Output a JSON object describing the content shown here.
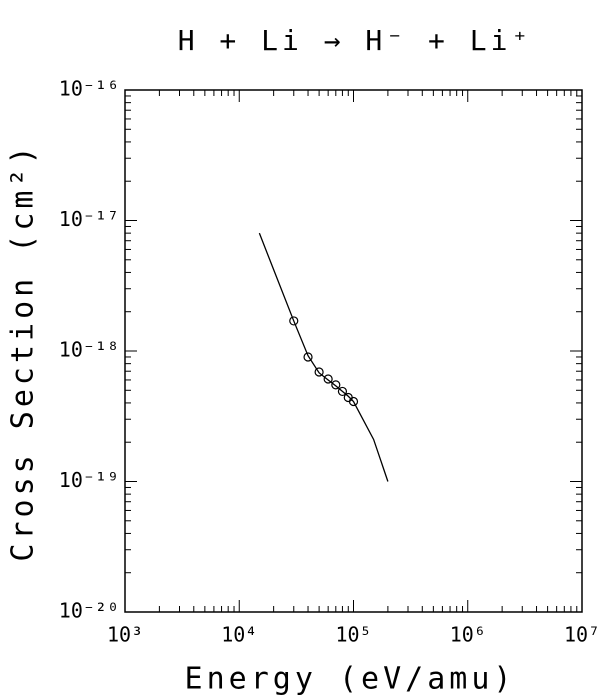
{
  "chart_data": {
    "type": "scatter",
    "title": "H + Li → H⁻ + Li⁺",
    "x_label": "Energy (eV/amu)",
    "y_label": "Cross Section (cm²)",
    "log_x": true,
    "log_y": true,
    "color": "#000000",
    "xlim": [
      1000,
      10000000
    ],
    "ylim": [
      1e-20,
      1e-16
    ],
    "xticks": [
      {
        "value": 1000,
        "label": "10³"
      },
      {
        "value": 10000,
        "label": "10⁴"
      },
      {
        "value": 100000,
        "label": "10⁵"
      },
      {
        "value": 1000000,
        "label": "10⁶"
      },
      {
        "value": 10000000,
        "label": "10⁷"
      }
    ],
    "yticks": [
      {
        "value": 1e-20,
        "label": "10⁻²⁰"
      },
      {
        "value": 1e-19,
        "label": "10⁻¹⁹"
      },
      {
        "value": 1e-18,
        "label": "10⁻¹⁸"
      },
      {
        "value": 1e-17,
        "label": "10⁻¹⁷"
      },
      {
        "value": 1e-16,
        "label": "10⁻¹⁶"
      }
    ],
    "points": {
      "x": [
        30000,
        40000,
        50000,
        60000,
        70000,
        80000,
        90000,
        100000
      ],
      "values": [
        1.7e-18,
        9e-19,
        6.9e-19,
        6.1e-19,
        5.5e-19,
        4.9e-19,
        4.4e-19,
        4.1e-19
      ]
    },
    "fit": {
      "x": [
        15000,
        20000,
        30000,
        40000,
        50000,
        60000,
        70000,
        80000,
        90000,
        100000,
        150000,
        200000
      ],
      "values": [
        8e-18,
        4.2e-18,
        1.7e-18,
        9.2e-19,
        6.8e-19,
        6e-19,
        5.4e-19,
        4.9e-19,
        4.5e-19,
        4.1e-19,
        2.1e-19,
        1e-19
      ]
    }
  }
}
